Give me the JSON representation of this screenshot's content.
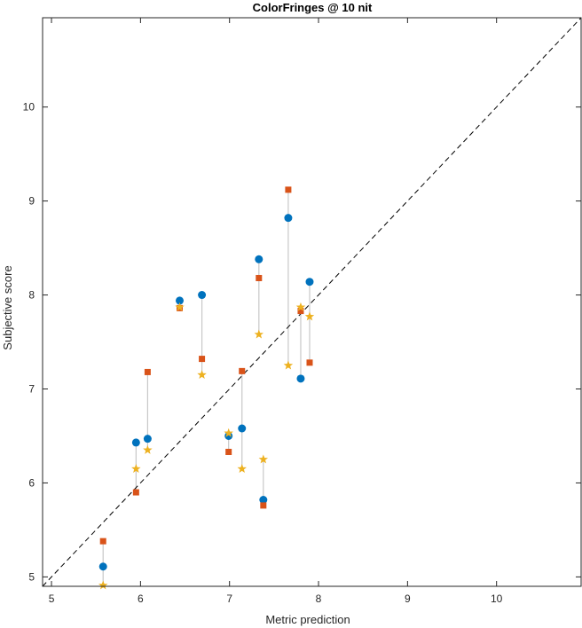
{
  "chart_data": {
    "type": "scatter",
    "title": "ColorFringes @ 10 nit",
    "xlabel": "Metric prediction",
    "ylabel": "Subjective score",
    "xlim": [
      4.9,
      10.95
    ],
    "ylim": [
      4.9,
      10.95
    ],
    "xticks": [
      "5",
      "6",
      "7",
      "8",
      "9",
      "10"
    ],
    "yticks": [
      "5",
      "6",
      "7",
      "8",
      "9",
      "10"
    ],
    "reference_line": "y = x (dashed)",
    "grid": false,
    "legend": "none",
    "x": [
      5.58,
      5.95,
      6.08,
      6.44,
      6.69,
      6.99,
      7.14,
      7.33,
      7.38,
      7.66,
      7.8,
      7.9
    ],
    "series": [
      {
        "marker": "circle",
        "color": "#0072BD",
        "values": [
          5.11,
          6.43,
          6.47,
          7.94,
          8.0,
          6.5,
          6.58,
          8.38,
          5.82,
          8.82,
          7.11,
          8.14
        ]
      },
      {
        "marker": "square",
        "color": "#D95319",
        "values": [
          5.38,
          5.9,
          7.18,
          7.86,
          7.32,
          6.33,
          7.19,
          8.18,
          5.76,
          9.12,
          7.83,
          7.28
        ]
      },
      {
        "marker": "star",
        "color": "#EDB120",
        "values": [
          4.91,
          6.15,
          6.35,
          7.87,
          7.15,
          6.53,
          6.15,
          7.58,
          6.25,
          7.25,
          7.87,
          7.77
        ]
      }
    ],
    "connector_color": "#c8c8c8"
  }
}
